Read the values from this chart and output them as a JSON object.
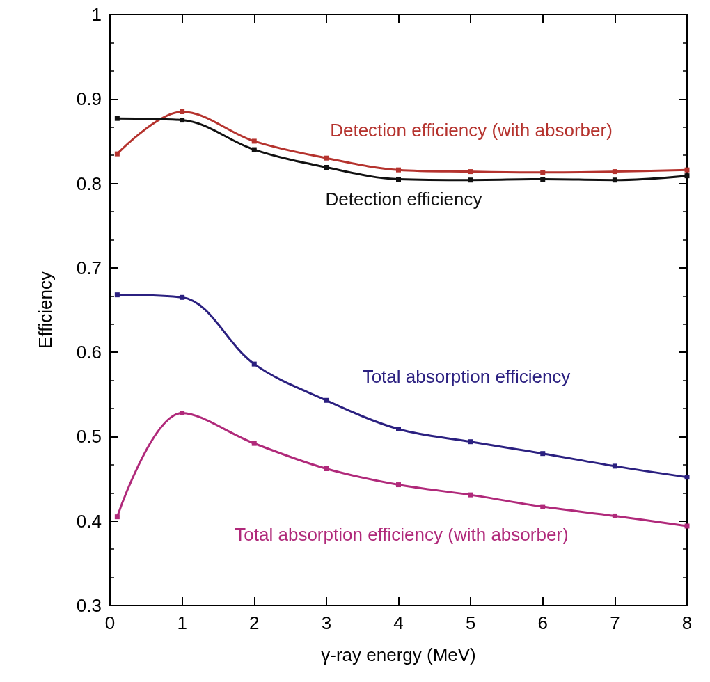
{
  "chart_data": {
    "type": "line",
    "xlabel": "γ-ray energy (MeV)",
    "ylabel": "Efficiency",
    "x": [
      0.1,
      1,
      2,
      3,
      4,
      5,
      6,
      7,
      8
    ],
    "series": [
      {
        "name": "Detection efficiency (with absorber)",
        "color": "#b5332e",
        "values": [
          0.835,
          0.885,
          0.85,
          0.83,
          0.816,
          0.814,
          0.813,
          0.814,
          0.816
        ]
      },
      {
        "name": "Detection efficiency",
        "color": "#111111",
        "values": [
          0.877,
          0.875,
          0.84,
          0.819,
          0.805,
          0.804,
          0.805,
          0.804,
          0.809
        ]
      },
      {
        "name": "Total absorption efficiency",
        "color": "#2b2080",
        "values": [
          0.668,
          0.665,
          0.586,
          0.543,
          0.509,
          0.494,
          0.48,
          0.465,
          0.452
        ]
      },
      {
        "name": "Total absorption efficiency (with absorber)",
        "color": "#b0297a",
        "values": [
          0.405,
          0.528,
          0.492,
          0.462,
          0.443,
          0.431,
          0.417,
          0.406,
          0.394
        ]
      }
    ],
    "xlim": [
      0,
      8
    ],
    "xticks": [
      0,
      1,
      2,
      3,
      4,
      5,
      6,
      7,
      8
    ],
    "ylim": [
      0.3,
      1
    ],
    "yticks": [
      0.3,
      0.4,
      0.5,
      0.6,
      0.7,
      0.8,
      0.9,
      1
    ],
    "grid": false,
    "marker": "square",
    "line_style": "solid"
  }
}
